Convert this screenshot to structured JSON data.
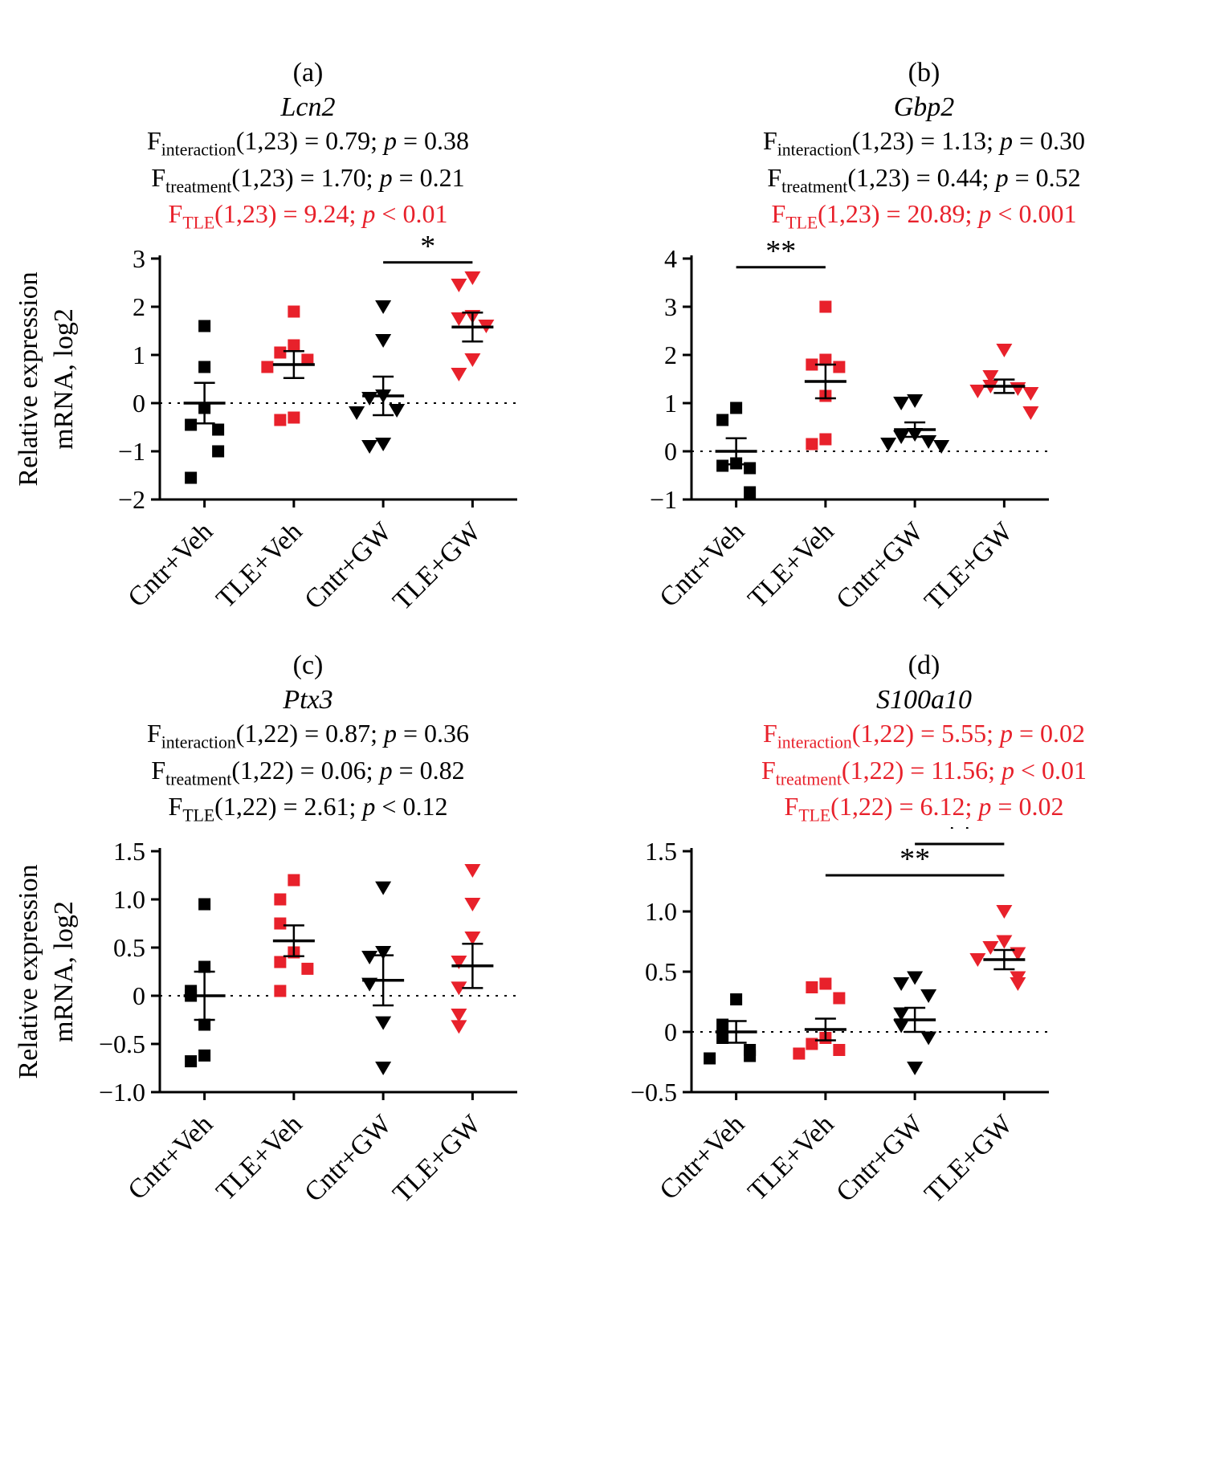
{
  "figure": {
    "background": "#ffffff",
    "accent_red": "#e8212b",
    "black": "#000000",
    "ylabel": [
      "Relative expression",
      "mRNA, log2"
    ],
    "categories": [
      "Cntr+Veh",
      "TLE+Veh",
      "Cntr+GW",
      "TLE+GW"
    ],
    "markers": [
      {
        "shape": "square",
        "color": "#000000"
      },
      {
        "shape": "square",
        "color": "#e8212b"
      },
      {
        "shape": "triangle-down",
        "color": "#000000"
      },
      {
        "shape": "triangle-down",
        "color": "#e8212b"
      }
    ]
  },
  "chart_data": [
    {
      "type": "scatter",
      "letter": "(a)",
      "title": "Lcn2",
      "stats": [
        {
          "sub": "interaction",
          "df": "1,23",
          "f": "0.79",
          "p_op": "=",
          "p": "0.38",
          "red": false
        },
        {
          "sub": "treatment",
          "df": "1,23",
          "f": "1.70",
          "p_op": "=",
          "p": "0.21",
          "red": false
        },
        {
          "sub": "TLE",
          "df": "1,23",
          "f": "9.24",
          "p_op": "<",
          "p": "0.01",
          "red": true
        }
      ],
      "has_ylabel": true,
      "ylim": [
        -2,
        3
      ],
      "yticks": [
        3,
        2,
        1,
        0,
        -1,
        -2
      ],
      "ytick_labels": [
        "3",
        "2",
        "1",
        "0",
        "−1",
        "−2"
      ],
      "series": [
        {
          "name": "Cntr+Veh",
          "values": [
            1.6,
            0.75,
            -0.1,
            -0.45,
            -0.55,
            -1.0,
            -1.55
          ],
          "mean": 0.0,
          "sem": 0.42
        },
        {
          "name": "TLE+Veh",
          "values": [
            1.9,
            1.2,
            1.05,
            0.9,
            0.75,
            -0.3,
            -0.35
          ],
          "mean": 0.8,
          "sem": 0.28
        },
        {
          "name": "Cntr+GW",
          "values": [
            2.0,
            1.3,
            0.15,
            0.1,
            -0.15,
            -0.2,
            -0.85,
            -0.9
          ],
          "mean": 0.15,
          "sem": 0.4
        },
        {
          "name": "TLE+GW",
          "values": [
            2.6,
            2.45,
            1.8,
            1.75,
            1.6,
            0.9,
            0.6
          ],
          "mean": 1.58,
          "sem": 0.3
        }
      ],
      "significance": [
        {
          "from": 2,
          "to": 3,
          "y": 2.92,
          "label": "*"
        }
      ]
    },
    {
      "type": "scatter",
      "letter": "(b)",
      "title": "Gbp2",
      "stats": [
        {
          "sub": "interaction",
          "df": "1,23",
          "f": "1.13",
          "p_op": "=",
          "p": "0.30",
          "red": false
        },
        {
          "sub": "treatment",
          "df": "1,23",
          "f": "0.44",
          "p_op": "=",
          "p": "0.52",
          "red": false
        },
        {
          "sub": "TLE",
          "df": "1,23",
          "f": "20.89",
          "p_op": "<",
          "p": "0.001",
          "red": true
        }
      ],
      "has_ylabel": false,
      "ylim": [
        -1,
        4
      ],
      "yticks": [
        4,
        3,
        2,
        1,
        0,
        -1
      ],
      "ytick_labels": [
        "4",
        "3",
        "2",
        "1",
        "0",
        "−1"
      ],
      "series": [
        {
          "name": "Cntr+Veh",
          "values": [
            0.9,
            0.65,
            -0.25,
            -0.3,
            -0.35,
            -0.85
          ],
          "mean": 0.0,
          "sem": 0.27
        },
        {
          "name": "TLE+Veh",
          "values": [
            3.0,
            1.9,
            1.8,
            1.75,
            1.15,
            0.25,
            0.15
          ],
          "mean": 1.45,
          "sem": 0.35
        },
        {
          "name": "Cntr+GW",
          "values": [
            1.05,
            1.0,
            0.35,
            0.3,
            0.2,
            0.15,
            0.1
          ],
          "mean": 0.45,
          "sem": 0.15
        },
        {
          "name": "TLE+GW",
          "values": [
            2.1,
            1.55,
            1.35,
            1.3,
            1.25,
            1.2,
            0.8
          ],
          "mean": 1.35,
          "sem": 0.14
        }
      ],
      "significance": [
        {
          "from": 0,
          "to": 1,
          "y": 3.82,
          "label": "**"
        }
      ]
    },
    {
      "type": "scatter",
      "letter": "(c)",
      "title": "Ptx3",
      "stats": [
        {
          "sub": "interaction",
          "df": "1,22",
          "f": "0.87",
          "p_op": "=",
          "p": "0.36",
          "red": false
        },
        {
          "sub": "treatment",
          "df": "1,22",
          "f": "0.06",
          "p_op": "=",
          "p": "0.82",
          "red": false
        },
        {
          "sub": "TLE",
          "df": "1,22",
          "f": "2.61",
          "p_op": "<",
          "p": "0.12",
          "red": false
        }
      ],
      "has_ylabel": true,
      "ylim": [
        -1.0,
        1.5
      ],
      "yticks": [
        1.5,
        1.0,
        0.5,
        0,
        -0.5,
        -1.0
      ],
      "ytick_labels": [
        "1.5",
        "1.0",
        "0.5",
        "0",
        "−0.5",
        "−1.0"
      ],
      "series": [
        {
          "name": "Cntr+Veh",
          "values": [
            0.95,
            0.3,
            0.05,
            0.0,
            -0.3,
            -0.62,
            -0.68
          ],
          "mean": 0.0,
          "sem": 0.25
        },
        {
          "name": "TLE+Veh",
          "values": [
            1.2,
            1.0,
            0.75,
            0.45,
            0.35,
            0.28,
            0.05
          ],
          "mean": 0.57,
          "sem": 0.16
        },
        {
          "name": "Cntr+GW",
          "values": [
            1.12,
            0.45,
            0.4,
            0.12,
            -0.28,
            -0.75
          ],
          "mean": 0.16,
          "sem": 0.26
        },
        {
          "name": "TLE+GW",
          "values": [
            1.3,
            0.95,
            0.6,
            0.35,
            0.08,
            -0.2,
            -0.32
          ],
          "mean": 0.31,
          "sem": 0.23
        }
      ],
      "significance": []
    },
    {
      "type": "scatter",
      "letter": "(d)",
      "title": "S100a10",
      "stats": [
        {
          "sub": "interaction",
          "df": "1,22",
          "f": "5.55",
          "p_op": "=",
          "p": "0.02",
          "red": true
        },
        {
          "sub": "treatment",
          "df": "1,22",
          "f": "11.56",
          "p_op": "<",
          "p": "0.01",
          "red": true
        },
        {
          "sub": "TLE",
          "df": "1,22",
          "f": "6.12",
          "p_op": "=",
          "p": "0.02",
          "red": true
        }
      ],
      "has_ylabel": false,
      "ylim": [
        -0.5,
        1.5
      ],
      "yticks": [
        1.5,
        1.0,
        0.5,
        0,
        -0.5
      ],
      "ytick_labels": [
        "1.5",
        "1.0",
        "0.5",
        "0",
        "−0.5"
      ],
      "series": [
        {
          "name": "Cntr+Veh",
          "values": [
            0.27,
            0.06,
            -0.05,
            -0.15,
            -0.2,
            -0.22
          ],
          "mean": 0.0,
          "sem": 0.09
        },
        {
          "name": "TLE+Veh",
          "values": [
            0.4,
            0.37,
            0.28,
            -0.05,
            -0.1,
            -0.15,
            -0.18
          ],
          "mean": 0.02,
          "sem": 0.09
        },
        {
          "name": "Cntr+GW",
          "values": [
            0.45,
            0.4,
            0.3,
            0.15,
            0.05,
            -0.05,
            -0.3
          ],
          "mean": 0.1,
          "sem": 0.1
        },
        {
          "name": "TLE+GW",
          "values": [
            1.0,
            0.75,
            0.7,
            0.65,
            0.6,
            0.45,
            0.4
          ],
          "mean": 0.6,
          "sem": 0.08
        }
      ],
      "significance": [
        {
          "from": 2,
          "to": 3,
          "y": 1.56,
          "label": "**"
        },
        {
          "from": 1,
          "to": 3,
          "y": 1.3,
          "label": "**"
        }
      ]
    }
  ]
}
